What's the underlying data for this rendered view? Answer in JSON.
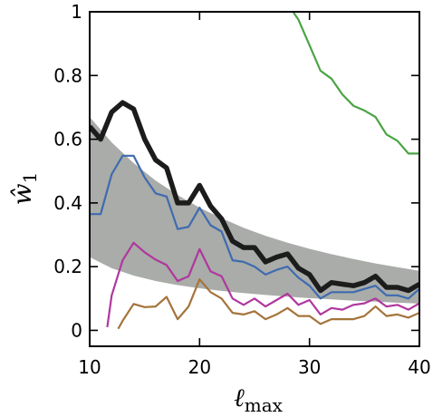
{
  "chart_data": {
    "type": "line",
    "xlabel": "ℓmax",
    "xlabel_main": "ℓ",
    "xlabel_sub": "max",
    "ylabel": "ŵ1",
    "ylabel_main": "ŵ",
    "ylabel_sub": "1",
    "xlim": [
      10,
      40
    ],
    "ylim": [
      -0.05,
      1.0
    ],
    "x_ticks": [
      10,
      20,
      30,
      40
    ],
    "x_tick_labels": [
      "10",
      "20",
      "30",
      "40"
    ],
    "y_ticks": [
      0,
      0.2,
      0.4,
      0.6,
      0.8,
      1.0
    ],
    "y_tick_labels": [
      "0",
      "0.2",
      "0.4",
      "0.6",
      "0.8",
      "1"
    ],
    "grid": false,
    "band": {
      "color": "#a9aca8",
      "x": [
        10,
        12,
        14,
        16,
        18,
        20,
        22,
        24,
        26,
        28,
        30,
        32,
        34,
        36,
        38,
        40
      ],
      "lower": [
        0.23,
        0.195,
        0.172,
        0.155,
        0.142,
        0.132,
        0.124,
        0.117,
        0.111,
        0.106,
        0.101,
        0.097,
        0.093,
        0.09,
        0.087,
        0.084
      ],
      "upper": [
        0.67,
        0.59,
        0.525,
        0.47,
        0.425,
        0.385,
        0.352,
        0.322,
        0.297,
        0.275,
        0.256,
        0.239,
        0.224,
        0.21,
        0.198,
        0.187
      ]
    },
    "series": [
      {
        "color": "#4aa444",
        "width": 2.2,
        "x": [
          28.5,
          29,
          30,
          31,
          32,
          33,
          34,
          35,
          36,
          37,
          38,
          39,
          40
        ],
        "y": [
          1.0,
          0.975,
          0.895,
          0.815,
          0.79,
          0.74,
          0.705,
          0.69,
          0.67,
          0.615,
          0.595,
          0.555,
          0.555
        ]
      },
      {
        "color": "#1c1c1c",
        "width": 5.5,
        "x": [
          10,
          11,
          12,
          13,
          14,
          15,
          16,
          17,
          18,
          19,
          20,
          21,
          22,
          23,
          24,
          25,
          26,
          27,
          28,
          29,
          30,
          31,
          32,
          33,
          34,
          35,
          36,
          37,
          38,
          39,
          40
        ],
        "y": [
          0.64,
          0.6,
          0.685,
          0.715,
          0.695,
          0.6,
          0.535,
          0.51,
          0.4,
          0.4,
          0.455,
          0.39,
          0.35,
          0.28,
          0.26,
          0.26,
          0.215,
          0.23,
          0.24,
          0.195,
          0.175,
          0.125,
          0.15,
          0.145,
          0.14,
          0.15,
          0.17,
          0.135,
          0.135,
          0.125,
          0.145
        ]
      },
      {
        "color": "#3f6bb0",
        "width": 2.2,
        "x": [
          10,
          11,
          12,
          13,
          14,
          15,
          16,
          17,
          18,
          19,
          20,
          21,
          22,
          23,
          24,
          25,
          26,
          27,
          28,
          29,
          30,
          31,
          32,
          33,
          34,
          35,
          36,
          37,
          38,
          39,
          40
        ],
        "y": [
          0.365,
          0.365,
          0.49,
          0.548,
          0.548,
          0.48,
          0.43,
          0.42,
          0.318,
          0.325,
          0.385,
          0.33,
          0.31,
          0.22,
          0.215,
          0.2,
          0.175,
          0.19,
          0.2,
          0.165,
          0.14,
          0.1,
          0.12,
          0.12,
          0.12,
          0.13,
          0.14,
          0.11,
          0.11,
          0.1,
          0.13
        ]
      },
      {
        "color": "#b0379e",
        "width": 2.2,
        "x": [
          11.6,
          12,
          13,
          14,
          15,
          16,
          17,
          18,
          19,
          20,
          21,
          22,
          23,
          24,
          25,
          26,
          27,
          28,
          29,
          30,
          31,
          32,
          33,
          34,
          35,
          36,
          37,
          38,
          39,
          40
        ],
        "y": [
          0.01,
          0.11,
          0.22,
          0.275,
          0.245,
          0.222,
          0.205,
          0.155,
          0.17,
          0.255,
          0.185,
          0.17,
          0.1,
          0.08,
          0.1,
          0.075,
          0.095,
          0.115,
          0.08,
          0.095,
          0.05,
          0.07,
          0.065,
          0.08,
          0.085,
          0.1,
          0.075,
          0.08,
          0.065,
          0.085
        ]
      },
      {
        "color": "#a5743b",
        "width": 2.2,
        "x": [
          12.6,
          13,
          14,
          15,
          16,
          17,
          18,
          19,
          20,
          21,
          22,
          23,
          24,
          25,
          26,
          27,
          28,
          29,
          30,
          31,
          32,
          33,
          34,
          35,
          36,
          37,
          38,
          39,
          40
        ],
        "y": [
          0.005,
          0.03,
          0.083,
          0.073,
          0.075,
          0.105,
          0.035,
          0.075,
          0.16,
          0.12,
          0.1,
          0.055,
          0.05,
          0.06,
          0.035,
          0.05,
          0.07,
          0.045,
          0.045,
          0.02,
          0.035,
          0.035,
          0.035,
          0.045,
          0.075,
          0.045,
          0.05,
          0.04,
          0.055
        ]
      }
    ]
  }
}
